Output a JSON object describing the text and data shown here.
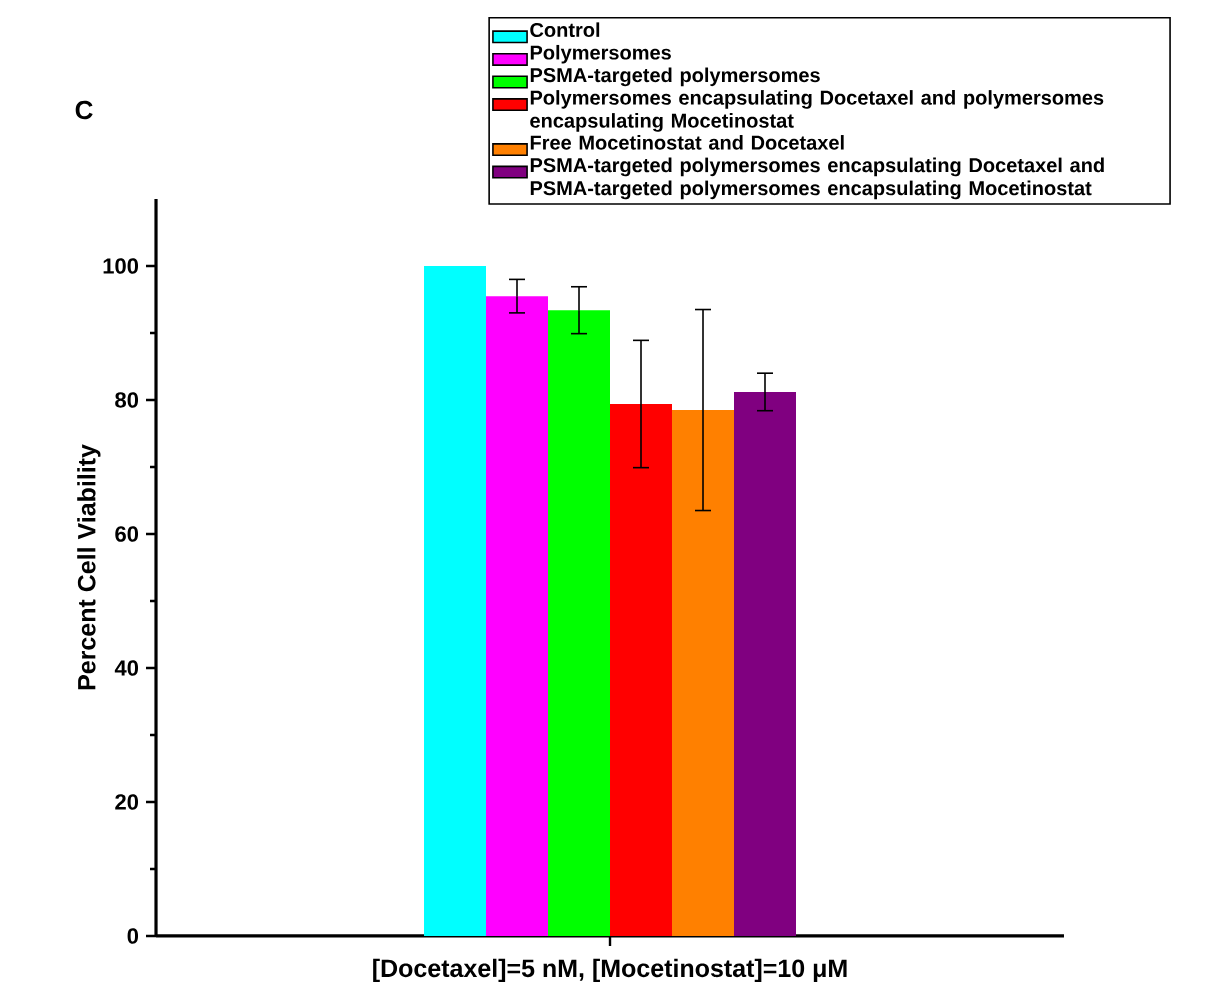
{
  "chart_data": {
    "type": "bar",
    "ylabel": "Percent Cell Viability",
    "xlabel": "[Docetaxel]=5 nM, [Mocetinostat]=10 μM",
    "annotations": [
      "C"
    ],
    "categories": [
      null
    ],
    "series": [
      {
        "name": "Control",
        "color": "#00ffff",
        "values": [
          100
        ]
      },
      {
        "name": "Polymersomes",
        "color": "#ff00ff",
        "values": [
          95.5
        ],
        "errors": [
          2.5
        ]
      },
      {
        "name": "PSMA-targeted polymersomes",
        "color": "#00ff00",
        "values": [
          93.4
        ],
        "errors": [
          3.5
        ]
      },
      {
        "name": "Polymersomes encapsulating Docetaxel and polymersomes encapsulating Mocetinostat",
        "color": "#ff0000",
        "values": [
          79.4
        ],
        "errors": [
          9.5
        ]
      },
      {
        "name": "Free Mocetinostat and Docetaxel",
        "color": "#ff8000",
        "values": [
          78.5
        ],
        "errors": [
          15
        ]
      },
      {
        "name": "PSMA-targeted polymersomes encapsulating Docetaxel and PSMA-targeted polymersomes encapsulating Mocetinostat",
        "color": "#800080",
        "values": [
          81.2
        ],
        "errors": [
          2.8
        ]
      }
    ],
    "ylim": [
      0,
      110
    ],
    "yticks": [
      0,
      20,
      40,
      60,
      80,
      100
    ],
    "legend": "top right"
  }
}
